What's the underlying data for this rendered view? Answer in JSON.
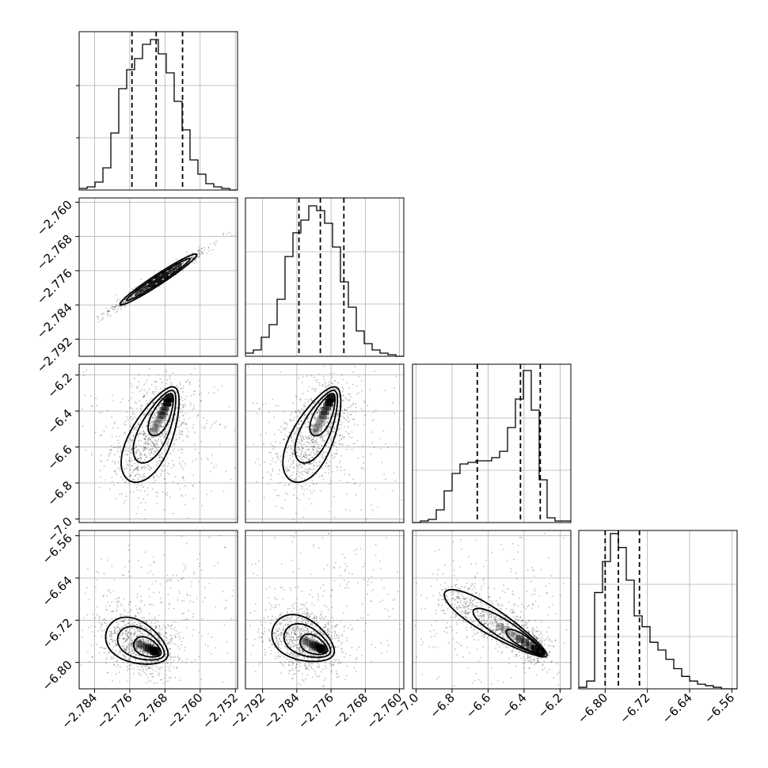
{
  "chart_data": {
    "type": "corner",
    "title": "",
    "parameters": [
      {
        "index": 0,
        "range": [
          -2.7875,
          -2.7515
        ],
        "quantiles": [
          -2.7755,
          -2.77,
          -2.764
        ],
        "ticks": [
          -2.784,
          -2.776,
          -2.768,
          -2.76,
          -2.752
        ],
        "tick_labels": [
          "−2.784",
          "−2.776",
          "−2.768",
          "−2.760",
          "−2.752"
        ]
      },
      {
        "index": 1,
        "range": [
          -2.796,
          -2.759
        ],
        "quantiles": [
          -2.7835,
          -2.7785,
          -2.773
        ],
        "ticks": [
          -2.792,
          -2.784,
          -2.776,
          -2.768,
          -2.76
        ],
        "tick_labels": [
          "−2.792",
          "−2.784",
          "−2.776",
          "−2.768",
          "−2.760"
        ],
        "left_tick_labels": [
          "−2.760",
          "−2.768",
          "−2.776",
          "−2.784",
          "−2.792"
        ]
      },
      {
        "index": 2,
        "range": [
          -7.02,
          -6.14
        ],
        "quantiles": [
          -6.66,
          -6.42,
          -6.31
        ],
        "ticks": [
          -7.0,
          -6.8,
          -6.6,
          -6.4,
          -6.2
        ],
        "tick_labels": [
          "−7.0",
          "−6.8",
          "−6.6",
          "−6.4",
          "−6.2"
        ],
        "left_tick_labels": [
          "−6.2",
          "−6.4",
          "−6.6",
          "−6.8",
          "−7.0"
        ]
      },
      {
        "index": 3,
        "range": [
          -6.85,
          -6.55
        ],
        "quantiles": [
          -6.8,
          -6.775,
          -6.735
        ],
        "ticks": [
          -6.8,
          -6.72,
          -6.64,
          -6.56
        ],
        "tick_labels": [
          "−6.80",
          "−6.72",
          "−6.64",
          "−6.56"
        ],
        "left_tick_labels": [
          "−6.56",
          "−6.64",
          "−6.72",
          "−6.80"
        ]
      }
    ],
    "histograms": [
      {
        "param": 0,
        "edges_start": -2.7875,
        "bin_width": 0.0018,
        "counts": [
          1,
          2,
          5,
          14,
          36,
          64,
          76,
          83,
          92,
          95,
          86,
          74,
          56,
          38,
          19,
          10,
          4,
          2,
          1,
          0
        ],
        "ymax": 100
      },
      {
        "param": 1,
        "edges_start": -2.796,
        "bin_width": 0.00185,
        "counts": [
          2,
          4,
          12,
          20,
          36,
          63,
          78,
          86,
          95,
          92,
          84,
          69,
          47,
          31,
          16,
          8,
          4,
          2,
          1,
          0
        ],
        "ymax": 100
      },
      {
        "param": 2,
        "edges_start": -7.02,
        "bin_width": 0.044,
        "counts": [
          0,
          1,
          2,
          8,
          20,
          31,
          37,
          38,
          39,
          39,
          41,
          45,
          60,
          78,
          96,
          71,
          27,
          3,
          1,
          1
        ],
        "ymax": 100
      },
      {
        "param": 3,
        "edges_start": -6.85,
        "bin_width": 0.015,
        "counts": [
          1,
          5,
          62,
          82,
          100,
          91,
          70,
          47,
          40,
          30,
          25,
          19,
          13,
          8,
          5,
          3,
          2,
          1,
          0,
          0
        ],
        "ymax": 102
      }
    ],
    "pairs": [
      {
        "x": 0,
        "y": 1,
        "shape": "narrow diagonal ellipse",
        "mode": [
          -2.772,
          -2.7795
        ]
      },
      {
        "x": 0,
        "y": 2,
        "shape": "skewed banana",
        "mode": [
          -2.767,
          -6.33
        ]
      },
      {
        "x": 1,
        "y": 2,
        "shape": "skewed banana",
        "mode": [
          -2.776,
          -6.33
        ]
      },
      {
        "x": 0,
        "y": 3,
        "shape": "skewed banana",
        "mode": [
          -2.77,
          -6.78
        ]
      },
      {
        "x": 1,
        "y": 3,
        "shape": "skewed banana",
        "mode": [
          -2.778,
          -6.775
        ]
      },
      {
        "x": 2,
        "y": 3,
        "shape": "anti-correlated band",
        "mode": [
          -6.31,
          -6.78
        ]
      }
    ],
    "grid": true,
    "legend": "none"
  }
}
